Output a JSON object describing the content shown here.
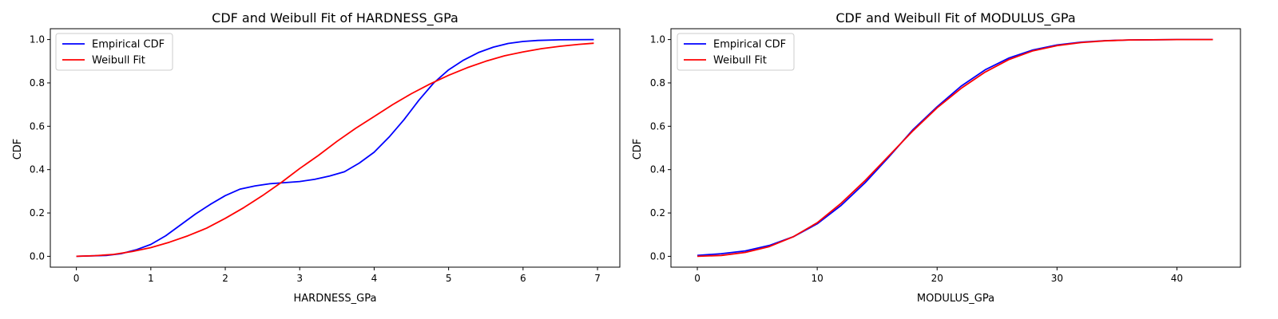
{
  "chart_data": [
    {
      "type": "line",
      "title": "CDF and Weibull Fit of HARDNESS_GPa",
      "xlabel": "HARDNESS_GPa",
      "ylabel": "CDF",
      "xlim": [
        -0.35,
        7.3
      ],
      "ylim": [
        -0.05,
        1.05
      ],
      "xticks": [
        0,
        1,
        2,
        3,
        4,
        5,
        6,
        7
      ],
      "yticks": [
        0.0,
        0.2,
        0.4,
        0.6,
        0.8,
        1.0
      ],
      "grid": false,
      "legend": "top-left",
      "series": [
        {
          "name": "Empirical CDF",
          "color": "#0000ff",
          "x": [
            0,
            0.4,
            0.6,
            0.8,
            1.0,
            1.2,
            1.4,
            1.6,
            1.8,
            2.0,
            2.2,
            2.4,
            2.6,
            2.8,
            3.0,
            3.2,
            3.4,
            3.6,
            3.8,
            4.0,
            4.2,
            4.4,
            4.6,
            4.8,
            5.0,
            5.2,
            5.4,
            5.6,
            5.8,
            6.0,
            6.2,
            6.5,
            6.95
          ],
          "y": [
            0.0,
            0.004,
            0.012,
            0.03,
            0.055,
            0.095,
            0.145,
            0.195,
            0.24,
            0.28,
            0.31,
            0.325,
            0.335,
            0.34,
            0.345,
            0.355,
            0.37,
            0.39,
            0.43,
            0.48,
            0.55,
            0.63,
            0.72,
            0.8,
            0.86,
            0.905,
            0.94,
            0.965,
            0.982,
            0.991,
            0.996,
            0.999,
            1.0
          ]
        },
        {
          "name": "Weibull Fit",
          "color": "#ff0000",
          "x": [
            0,
            0.25,
            0.5,
            0.75,
            1.0,
            1.25,
            1.5,
            1.75,
            2.0,
            2.25,
            2.5,
            2.75,
            3.0,
            3.25,
            3.5,
            3.75,
            4.0,
            4.25,
            4.5,
            4.75,
            5.0,
            5.25,
            5.5,
            5.75,
            6.0,
            6.25,
            6.5,
            6.75,
            6.95
          ],
          "y": [
            0.0,
            0.003,
            0.009,
            0.022,
            0.04,
            0.065,
            0.095,
            0.13,
            0.175,
            0.225,
            0.28,
            0.34,
            0.405,
            0.465,
            0.53,
            0.59,
            0.645,
            0.7,
            0.75,
            0.795,
            0.835,
            0.87,
            0.9,
            0.925,
            0.943,
            0.958,
            0.969,
            0.978,
            0.983
          ]
        }
      ]
    },
    {
      "type": "line",
      "title": "CDF and Weibull Fit of MODULUS_GPa",
      "xlabel": "MODULUS_GPa",
      "ylabel": "CDF",
      "xlim": [
        -2.2,
        45.3
      ],
      "ylim": [
        -0.05,
        1.05
      ],
      "xticks": [
        0,
        10,
        20,
        30,
        40
      ],
      "yticks": [
        0.0,
        0.2,
        0.4,
        0.6,
        0.8,
        1.0
      ],
      "grid": false,
      "legend": "top-left",
      "series": [
        {
          "name": "Empirical CDF",
          "color": "#0000ff",
          "x": [
            0,
            2,
            4,
            6,
            8,
            10,
            12,
            14,
            16,
            18,
            20,
            22,
            24,
            26,
            28,
            30,
            32,
            34,
            36,
            40,
            43
          ],
          "y": [
            0.004,
            0.012,
            0.025,
            0.05,
            0.09,
            0.15,
            0.235,
            0.34,
            0.46,
            0.585,
            0.69,
            0.785,
            0.86,
            0.915,
            0.952,
            0.975,
            0.988,
            0.995,
            0.998,
            1.0,
            1.0
          ]
        },
        {
          "name": "Weibull Fit",
          "color": "#ff0000",
          "x": [
            0,
            2,
            4,
            6,
            8,
            10,
            12,
            14,
            16,
            18,
            20,
            22,
            24,
            26,
            28,
            30,
            32,
            34,
            36,
            40,
            43
          ],
          "y": [
            0.0,
            0.004,
            0.018,
            0.045,
            0.09,
            0.155,
            0.245,
            0.35,
            0.465,
            0.58,
            0.685,
            0.775,
            0.85,
            0.908,
            0.948,
            0.972,
            0.986,
            0.994,
            0.998,
            1.0,
            1.0
          ]
        }
      ]
    }
  ]
}
